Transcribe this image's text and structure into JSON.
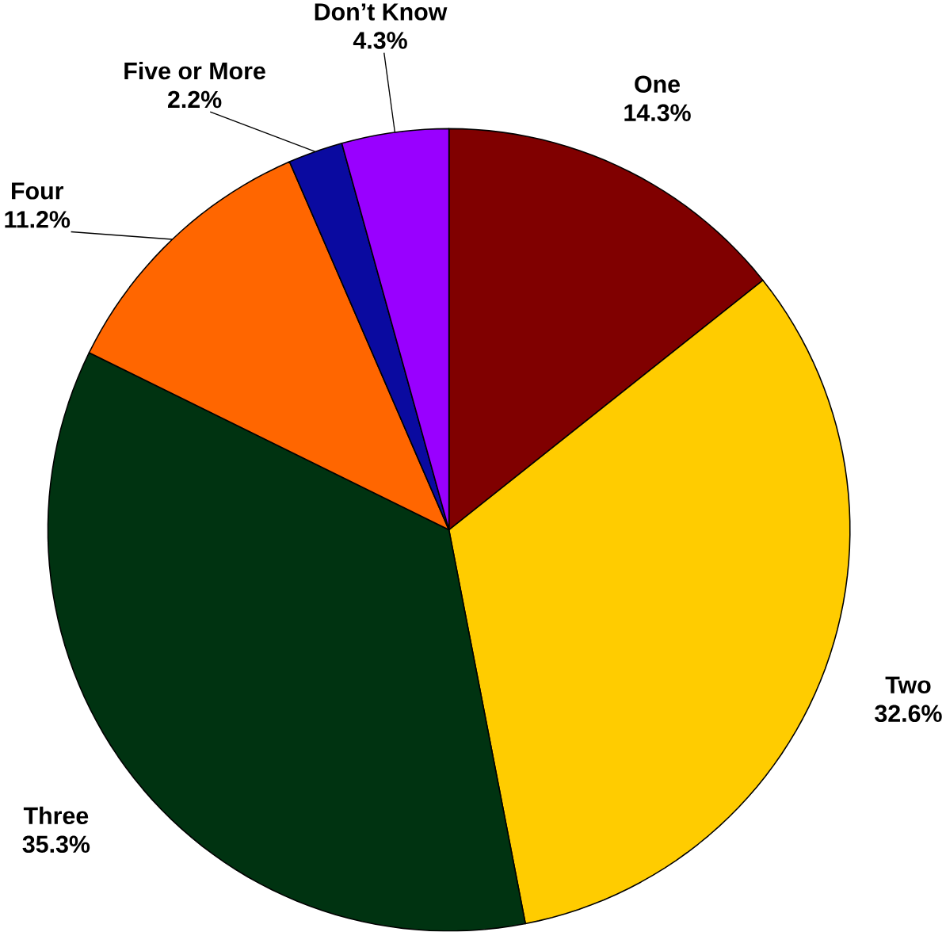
{
  "chart_data": {
    "type": "pie",
    "categories": [
      "One",
      "Two",
      "Three",
      "Four",
      "Five or More",
      "Don’t Know"
    ],
    "values": [
      14.3,
      32.6,
      35.3,
      11.2,
      2.2,
      4.3
    ],
    "value_labels": [
      "14.3%",
      "32.6%",
      "35.3%",
      "11.2%",
      "2.2%",
      "4.3%"
    ],
    "colors": [
      "#800000",
      "#ffcc00",
      "#003311",
      "#ff6600",
      "#0a0aa0",
      "#9900ff"
    ]
  }
}
